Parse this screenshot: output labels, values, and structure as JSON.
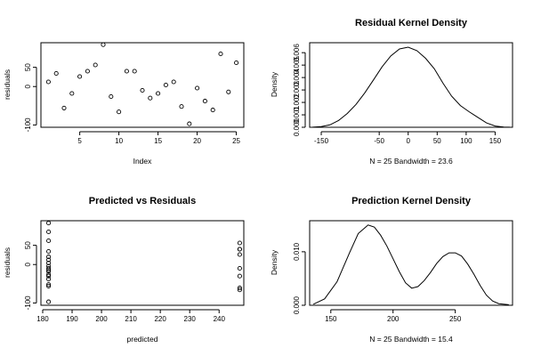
{
  "chart_data": [
    {
      "type": "scatter",
      "title": "",
      "xlabel": "Index",
      "ylabel": "residuals",
      "xlim": [
        0.04,
        25.96
      ],
      "ylim": [
        -106,
        114
      ],
      "x_ticks": [
        5,
        10,
        15,
        20,
        25
      ],
      "y_ticks": [
        -100,
        0,
        50
      ],
      "x": [
        1,
        2,
        3,
        4,
        5,
        6,
        7,
        8,
        9,
        10,
        11,
        12,
        13,
        14,
        15,
        16,
        17,
        18,
        19,
        20,
        21,
        22,
        23,
        24,
        25
      ],
      "y": [
        12,
        34,
        -56,
        -18,
        26,
        40,
        56,
        109,
        -26,
        -66,
        40,
        40,
        -10,
        -30,
        -18,
        4,
        12,
        -52,
        -97,
        -4,
        -38,
        -61,
        85,
        -14,
        62
      ]
    },
    {
      "type": "line",
      "title": "Residual Kernel Density",
      "xlabel": "N = 25   Bandwidth = 23.6",
      "ylabel": "Density",
      "xlim": [
        -170,
        180
      ],
      "ylim": [
        0,
        0.0068
      ],
      "x_ticks": [
        -150,
        -50,
        0,
        50,
        100,
        150
      ],
      "y_ticks": [
        0.0,
        0.001,
        0.002,
        0.003,
        0.004,
        0.005,
        0.006
      ],
      "y_tick_labels": [
        "0.000",
        "0.001",
        "0.002",
        "0.003",
        "0.004",
        "0.005",
        "0.006"
      ],
      "x": [
        -165,
        -150,
        -135,
        -120,
        -105,
        -90,
        -75,
        -60,
        -45,
        -30,
        -15,
        0,
        15,
        30,
        45,
        60,
        75,
        90,
        105,
        120,
        135,
        150,
        165,
        175
      ],
      "y": [
        1e-05,
        5e-05,
        0.00019,
        0.00055,
        0.00111,
        0.00184,
        0.00276,
        0.00381,
        0.00486,
        0.00574,
        0.0063,
        0.00644,
        0.00616,
        0.00555,
        0.0047,
        0.00355,
        0.0025,
        0.00175,
        0.00125,
        0.0008,
        0.00035,
        0.0001,
        2e-05,
        1e-05
      ]
    },
    {
      "type": "scatter",
      "title": "Predicted vs Residuals",
      "xlabel": "predicted",
      "ylabel": "residuals",
      "xlim": [
        179.4,
        248.4
      ],
      "ylim": [
        -106,
        114
      ],
      "x_ticks": [
        180,
        190,
        200,
        210,
        220,
        230,
        240
      ],
      "y_ticks": [
        -100,
        0,
        50
      ],
      "x": [
        182,
        182,
        182,
        182,
        182,
        182,
        182,
        182,
        182,
        182,
        182,
        182,
        182,
        182,
        182,
        182,
        182,
        247,
        247,
        247,
        247,
        247,
        247,
        247,
        247
      ],
      "y": [
        108,
        85,
        62,
        34,
        20,
        12,
        4,
        -4,
        -10,
        -14,
        -18,
        -26,
        -30,
        -38,
        -52,
        -56,
        -97,
        56,
        40,
        40,
        26,
        -10,
        -30,
        -61,
        -66
      ]
    },
    {
      "type": "line",
      "title": "Prediction Kernel Density",
      "xlabel": "N = 25   Bandwidth = 15.4",
      "ylabel": "Density",
      "xlim": [
        133,
        296
      ],
      "ylim": [
        0,
        0.0158
      ],
      "x_ticks": [
        150,
        200,
        250
      ],
      "y_ticks": [
        0.0,
        0.01
      ],
      "y_tick_labels": [
        "0.000",
        "0.010"
      ],
      "x": [
        136,
        145,
        155,
        165,
        172,
        180,
        185,
        190,
        195,
        200,
        205,
        210,
        215,
        220,
        225,
        230,
        235,
        240,
        245,
        250,
        255,
        260,
        265,
        270,
        275,
        280,
        285,
        293
      ],
      "y": [
        0.0002,
        0.0012,
        0.0044,
        0.0098,
        0.0134,
        0.015,
        0.0146,
        0.0131,
        0.0111,
        0.0087,
        0.0063,
        0.0042,
        0.0032,
        0.0035,
        0.0046,
        0.0061,
        0.0078,
        0.0091,
        0.0098,
        0.0098,
        0.0092,
        0.0077,
        0.0058,
        0.0037,
        0.0019,
        0.0008,
        0.0003,
        0.0001
      ]
    }
  ]
}
